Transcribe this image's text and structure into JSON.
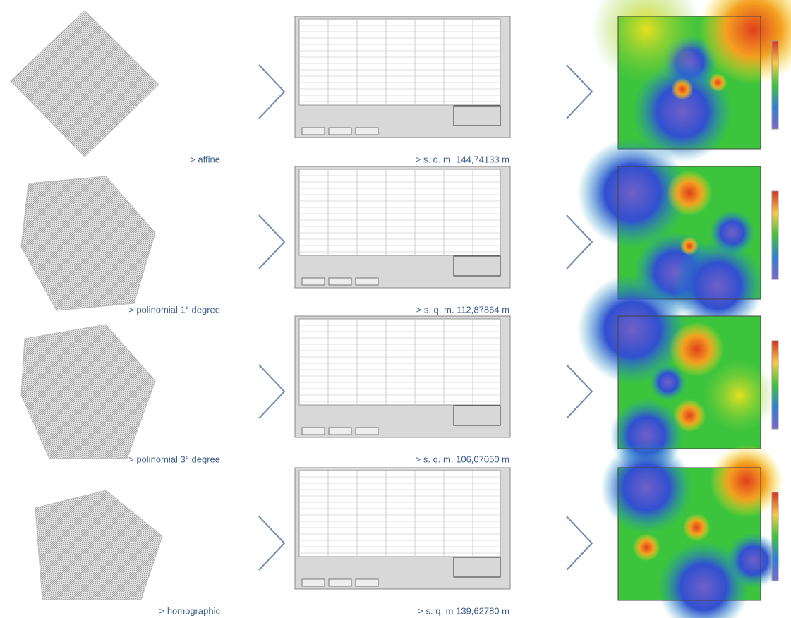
{
  "rows": [
    {
      "method": "> affine",
      "rmse": "> s. q. m. 144,74133 m"
    },
    {
      "method": "> polinomial 1° degree",
      "rmse": "> s. q. m. 112,87864 m"
    },
    {
      "method": "> polinomial 3° degree",
      "rmse": "> s. q. m. 106,07050 m"
    },
    {
      "method": "> homographic",
      "rmse": "> s. q. m 139,62780 m"
    }
  ]
}
